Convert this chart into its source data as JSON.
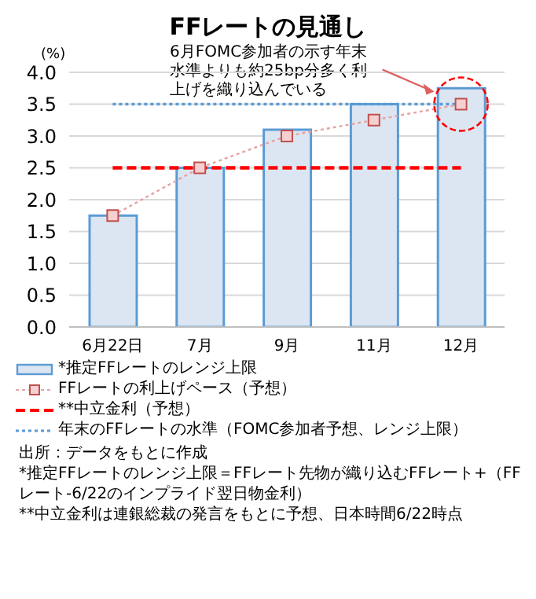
{
  "chart_data": {
    "type": "bar",
    "title": "FFレートの見通し",
    "ylabel": "(%)",
    "categories": [
      "6月22日",
      "7月",
      "9月",
      "11月",
      "12月"
    ],
    "series": [
      {
        "name": "*推定FFレートのレンジ上限",
        "color": "#dce6f2",
        "values": [
          1.75,
          2.5,
          3.1,
          3.5,
          3.75
        ]
      },
      {
        "name": "FFレートの利上げペース（予想）",
        "type": "line",
        "color": "#e6a3a3",
        "marker": "square",
        "line_style": "dotted",
        "values": [
          1.75,
          2.5,
          3.0,
          3.25,
          3.5
        ]
      }
    ],
    "ref_lines": [
      {
        "axis": "y",
        "value": 2.5,
        "label": "**中立金利（予想）",
        "color": "#ff0000",
        "line_style": "dashed"
      },
      {
        "axis": "y",
        "value": 3.5,
        "label": "年末のFFレートの水準（FOMC参加者予想、レンジ上限）",
        "color": "#5b9bd5",
        "line_style": "dotted"
      }
    ],
    "ylim": [
      0,
      4
    ],
    "yticks": [
      {
        "value": 0,
        "label": "0.0"
      },
      {
        "value": 0.5,
        "label": "0.5"
      },
      {
        "value": 1,
        "label": "1.0"
      },
      {
        "value": 1.5,
        "label": "1.5"
      },
      {
        "value": 2,
        "label": "2.0"
      },
      {
        "value": 2.5,
        "label": "2.5"
      },
      {
        "value": 3,
        "label": "3.0"
      },
      {
        "value": 3.5,
        "label": "3.5"
      },
      {
        "value": 4,
        "label": "4.0"
      }
    ],
    "grid": "y",
    "legend": "bottom",
    "annotations": [
      "6月FOMC参加者の示す年末水準よりも約25bp分多く利上げを織り込んでいる",
      "出所：データをもとに作成",
      "*推定FFレートのレンジ上限＝FFレート先物が織り込むFFレート+（FFレート-6/22のインプライド翌日物金利）",
      "**中立金利は連銀総裁の発言をもとに予想、日本時間6/22時点"
    ]
  }
}
